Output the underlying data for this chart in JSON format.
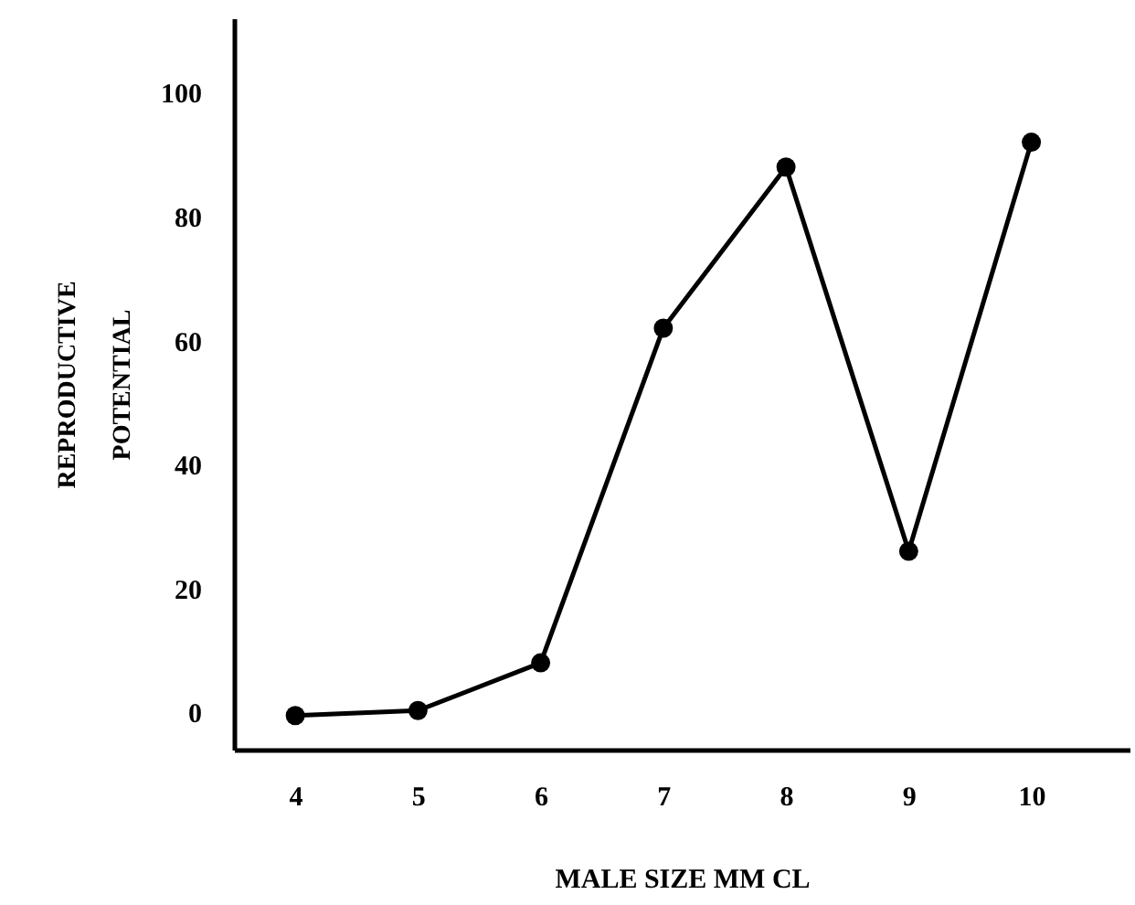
{
  "chart_data": {
    "type": "line",
    "xlabel": "MALE SIZE   MM CL",
    "ylabel": "REPRODUCTIVE POTENTIAL",
    "x": [
      4,
      5,
      6,
      7,
      8,
      9,
      10
    ],
    "series": [
      {
        "color": "#000000",
        "values": [
          -0.5,
          0.3,
          8,
          62,
          88,
          26,
          92
        ]
      }
    ],
    "xlim": [
      3.5,
      10.8
    ],
    "ylim": [
      -6,
      112
    ],
    "xticks": [
      4,
      5,
      6,
      7,
      8,
      9,
      10
    ],
    "yticks": [
      0,
      20,
      40,
      60,
      80,
      100
    ],
    "marker": "circle",
    "line_style": "solid",
    "grid": false
  }
}
